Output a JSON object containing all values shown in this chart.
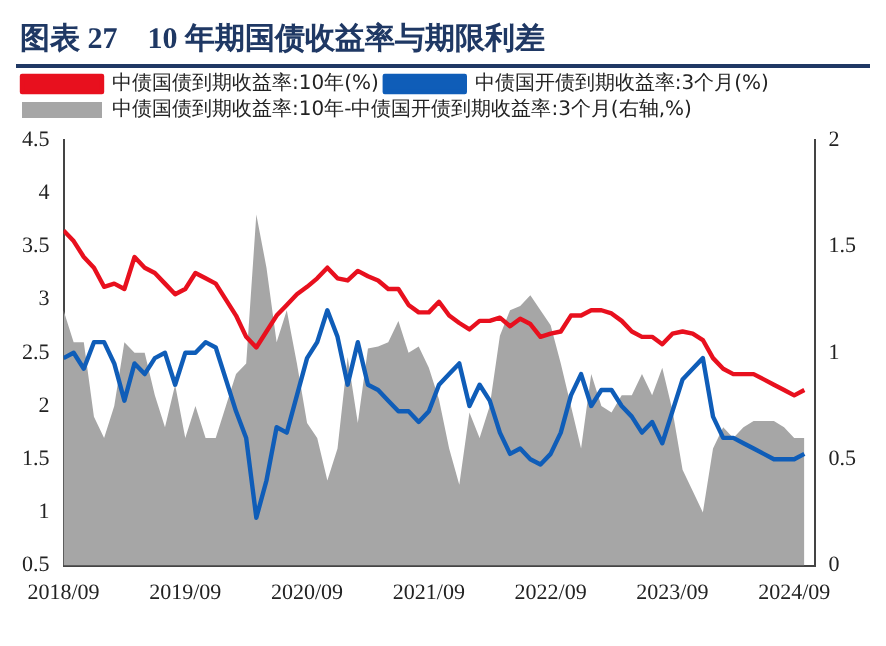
{
  "chart_data": {
    "type": "line",
    "title": "图表 27　10 年期国债收益率与期限利差",
    "x": [
      "2018-09",
      "2018-10",
      "2018-11",
      "2018-12",
      "2019-01",
      "2019-02",
      "2019-03",
      "2019-04",
      "2019-05",
      "2019-06",
      "2019-07",
      "2019-08",
      "2019-09",
      "2019-10",
      "2019-11",
      "2019-12",
      "2020-01",
      "2020-02",
      "2020-03",
      "2020-04",
      "2020-05",
      "2020-06",
      "2020-07",
      "2020-08",
      "2020-09",
      "2020-10",
      "2020-11",
      "2020-12",
      "2021-01",
      "2021-02",
      "2021-03",
      "2021-04",
      "2021-05",
      "2021-06",
      "2021-07",
      "2021-08",
      "2021-09",
      "2021-10",
      "2021-11",
      "2021-12",
      "2022-01",
      "2022-02",
      "2022-03",
      "2022-04",
      "2022-05",
      "2022-06",
      "2022-07",
      "2022-08",
      "2022-09",
      "2022-10",
      "2022-11",
      "2022-12",
      "2023-01",
      "2023-02",
      "2023-03",
      "2023-04",
      "2023-05",
      "2023-06",
      "2023-07",
      "2023-08",
      "2023-09",
      "2023-10",
      "2023-11",
      "2023-12",
      "2024-01",
      "2024-02",
      "2024-03",
      "2024-04",
      "2024-05",
      "2024-06",
      "2024-07",
      "2024-08",
      "2024-09",
      "2024-10"
    ],
    "series": [
      {
        "name": "中债国债到期收益率:10年-中债国开债到期收益率:3个月(右轴,%)",
        "type": "area",
        "axis": "y2",
        "color": "#a6a6a6",
        "values": [
          1.2,
          1.05,
          1.05,
          0.7,
          0.6,
          0.75,
          1.05,
          1.0,
          1.0,
          0.8,
          0.65,
          0.85,
          0.6,
          0.75,
          0.6,
          0.6,
          0.75,
          0.9,
          0.95,
          1.65,
          1.4,
          1.05,
          1.2,
          0.95,
          0.67,
          0.6,
          0.4,
          0.55,
          0.98,
          0.67,
          1.02,
          1.03,
          1.05,
          1.15,
          1.0,
          1.03,
          0.93,
          0.78,
          0.55,
          0.38,
          0.72,
          0.6,
          0.75,
          1.08,
          1.2,
          1.22,
          1.27,
          1.2,
          1.13,
          0.95,
          0.75,
          0.55,
          0.9,
          0.75,
          0.72,
          0.8,
          0.8,
          0.9,
          0.8,
          0.93,
          0.73,
          0.45,
          0.35,
          0.25,
          0.55,
          0.65,
          0.6,
          0.65,
          0.68,
          0.68,
          0.68,
          0.65,
          0.6,
          0.6
        ]
      },
      {
        "name": "中债国债到期收益率:10年(%)",
        "color": "#e8101e",
        "values": [
          3.65,
          3.55,
          3.4,
          3.3,
          3.12,
          3.15,
          3.1,
          3.4,
          3.3,
          3.25,
          3.15,
          3.05,
          3.1,
          3.25,
          3.2,
          3.15,
          3.0,
          2.85,
          2.65,
          2.55,
          2.7,
          2.85,
          2.95,
          3.05,
          3.12,
          3.2,
          3.3,
          3.2,
          3.18,
          3.27,
          3.22,
          3.18,
          3.1,
          3.1,
          2.95,
          2.88,
          2.88,
          2.98,
          2.85,
          2.78,
          2.72,
          2.8,
          2.8,
          2.83,
          2.75,
          2.82,
          2.77,
          2.65,
          2.68,
          2.7,
          2.85,
          2.85,
          2.9,
          2.9,
          2.87,
          2.8,
          2.7,
          2.65,
          2.65,
          2.58,
          2.68,
          2.7,
          2.68,
          2.62,
          2.45,
          2.35,
          2.3,
          2.3,
          2.3,
          2.25,
          2.2,
          2.15,
          2.1,
          2.15
        ]
      },
      {
        "name": "中债国开债到期收益率:3个月(%)",
        "color": "#0f5db8",
        "values": [
          2.45,
          2.5,
          2.35,
          2.6,
          2.6,
          2.4,
          2.05,
          2.4,
          2.3,
          2.45,
          2.5,
          2.2,
          2.5,
          2.5,
          2.6,
          2.55,
          2.25,
          1.95,
          1.7,
          0.95,
          1.3,
          1.8,
          1.75,
          2.1,
          2.45,
          2.6,
          2.9,
          2.65,
          2.2,
          2.6,
          2.2,
          2.15,
          2.05,
          1.95,
          1.95,
          1.85,
          1.95,
          2.2,
          2.3,
          2.4,
          2.0,
          2.2,
          2.05,
          1.75,
          1.55,
          1.6,
          1.5,
          1.45,
          1.55,
          1.75,
          2.1,
          2.3,
          2.0,
          2.15,
          2.15,
          2.0,
          1.9,
          1.75,
          1.85,
          1.65,
          1.95,
          2.25,
          2.35,
          2.45,
          1.9,
          1.7,
          1.7,
          1.65,
          1.6,
          1.55,
          1.5,
          1.5,
          1.5,
          1.55
        ]
      }
    ],
    "xlim": [
      "2018-09",
      "2024-11"
    ],
    "xticks": [
      {
        "value": "2018-09",
        "label": "2018/09"
      },
      {
        "value": "2019-09",
        "label": "2019/09"
      },
      {
        "value": "2020-09",
        "label": "2020/09"
      },
      {
        "value": "2021-09",
        "label": "2021/09"
      },
      {
        "value": "2022-09",
        "label": "2022/09"
      },
      {
        "value": "2023-09",
        "label": "2023/09"
      },
      {
        "value": "2024-09",
        "label": "2024/09"
      }
    ],
    "ylim": [
      0.5,
      4.5
    ],
    "yticks": [
      0.5,
      1,
      1.5,
      2,
      2.5,
      3,
      3.5,
      4,
      4.5
    ],
    "y2lim": [
      0,
      2
    ],
    "y2ticks": [
      0,
      0.5,
      1,
      1.5,
      2
    ],
    "legend": "top left",
    "grid": false,
    "marker": "none",
    "line_style": "solid"
  }
}
